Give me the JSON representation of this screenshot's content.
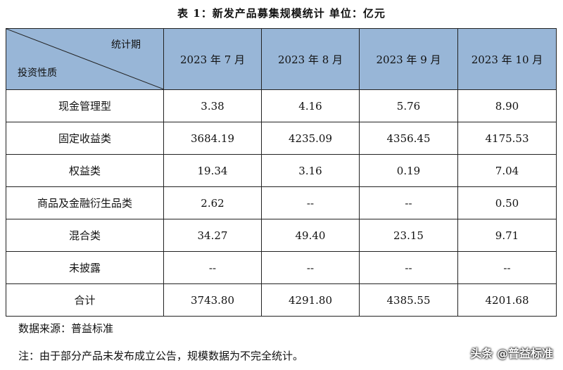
{
  "title": "表 1：新发产品募集规模统计 单位：亿元",
  "table": {
    "corner_top": "统计期",
    "corner_bottom": "投资性质",
    "columns": [
      "2023 年 7 月",
      "2023 年 8 月",
      "2023 年 9 月",
      "2023 年 10 月"
    ],
    "rows": [
      {
        "label": "现金管理型",
        "cells": [
          "3.38",
          "4.16",
          "5.76",
          "8.90"
        ]
      },
      {
        "label": "固定收益类",
        "cells": [
          "3684.19",
          "4235.09",
          "4356.45",
          "4175.53"
        ]
      },
      {
        "label": "权益类",
        "cells": [
          "19.34",
          "3.16",
          "0.19",
          "7.04"
        ]
      },
      {
        "label": "商品及金融衍生品类",
        "cells": [
          "2.62",
          "--",
          "--",
          "0.50"
        ]
      },
      {
        "label": "混合类",
        "cells": [
          "34.27",
          "49.40",
          "23.15",
          "9.71"
        ]
      },
      {
        "label": "未披露",
        "cells": [
          "--",
          "--",
          "--",
          "--"
        ]
      },
      {
        "label": "合计",
        "cells": [
          "3743.80",
          "4291.80",
          "4385.55",
          "4201.68"
        ]
      }
    ]
  },
  "source": "数据来源：普益标准",
  "note": "注：由于部分产品未发布成立公告，规模数据为不完全统计。",
  "watermark": "头条 @普益标准",
  "colors": {
    "header_bg": "#98b6d7",
    "border": "#222222"
  }
}
